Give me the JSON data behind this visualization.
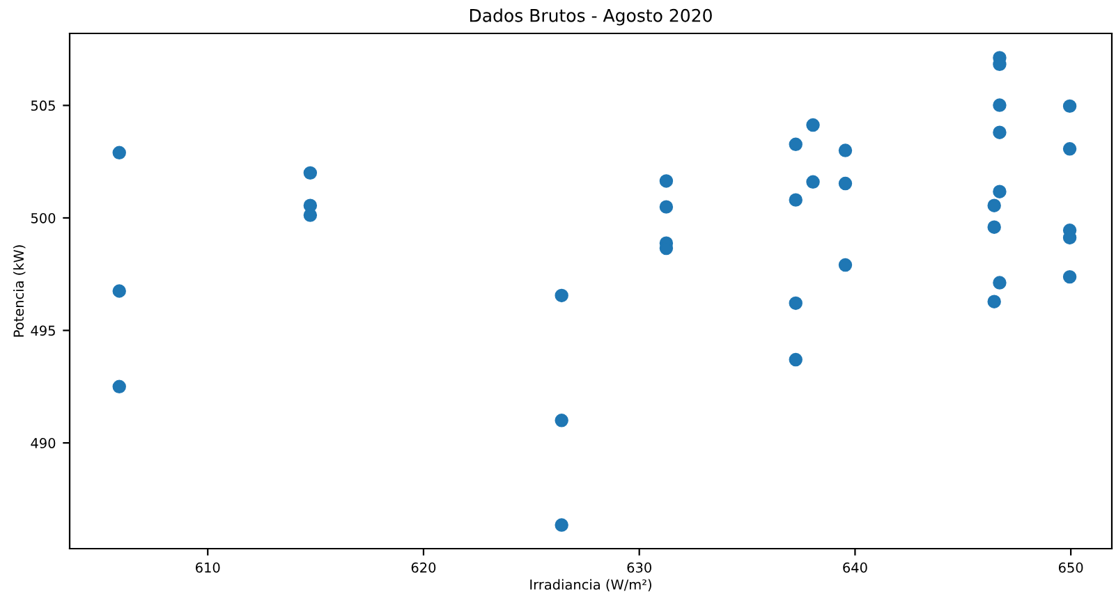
{
  "chart_data": {
    "type": "scatter",
    "title": "Dados Brutos - Agosto 2020",
    "xlabel": "Irradiancia (W/m²)",
    "ylabel": "Potencia (kW)",
    "xlim": [
      603.6,
      651.9
    ],
    "ylim": [
      485.3,
      508.2
    ],
    "xticks": [
      610,
      620,
      630,
      640,
      650
    ],
    "yticks": [
      490,
      495,
      500,
      505
    ],
    "grid": false,
    "marker": "circle",
    "series": [
      {
        "color": "#1f77b4",
        "x": [
          605.9,
          605.9,
          605.9,
          614.75,
          614.75,
          614.75,
          626.4,
          626.4,
          626.4,
          631.25,
          631.25,
          631.25,
          631.25,
          637.25,
          637.25,
          637.25,
          637.25,
          638.05,
          638.05,
          639.55,
          639.55,
          639.55,
          646.45,
          646.45,
          646.45,
          646.7,
          646.7,
          646.7,
          646.7,
          646.7,
          646.7,
          649.95,
          649.95,
          649.95,
          649.95,
          649.95
        ],
        "values": [
          502.9,
          496.75,
          492.5,
          502.0,
          500.55,
          500.12,
          496.55,
          491.0,
          486.35,
          501.64,
          500.49,
          498.88,
          498.65,
          503.27,
          500.8,
          496.21,
          493.7,
          504.13,
          501.6,
          503.0,
          501.53,
          497.91,
          500.55,
          499.59,
          496.28,
          507.12,
          506.83,
          505.01,
          503.8,
          501.17,
          497.12,
          504.97,
          503.07,
          499.45,
          499.12,
          497.38
        ]
      }
    ]
  }
}
